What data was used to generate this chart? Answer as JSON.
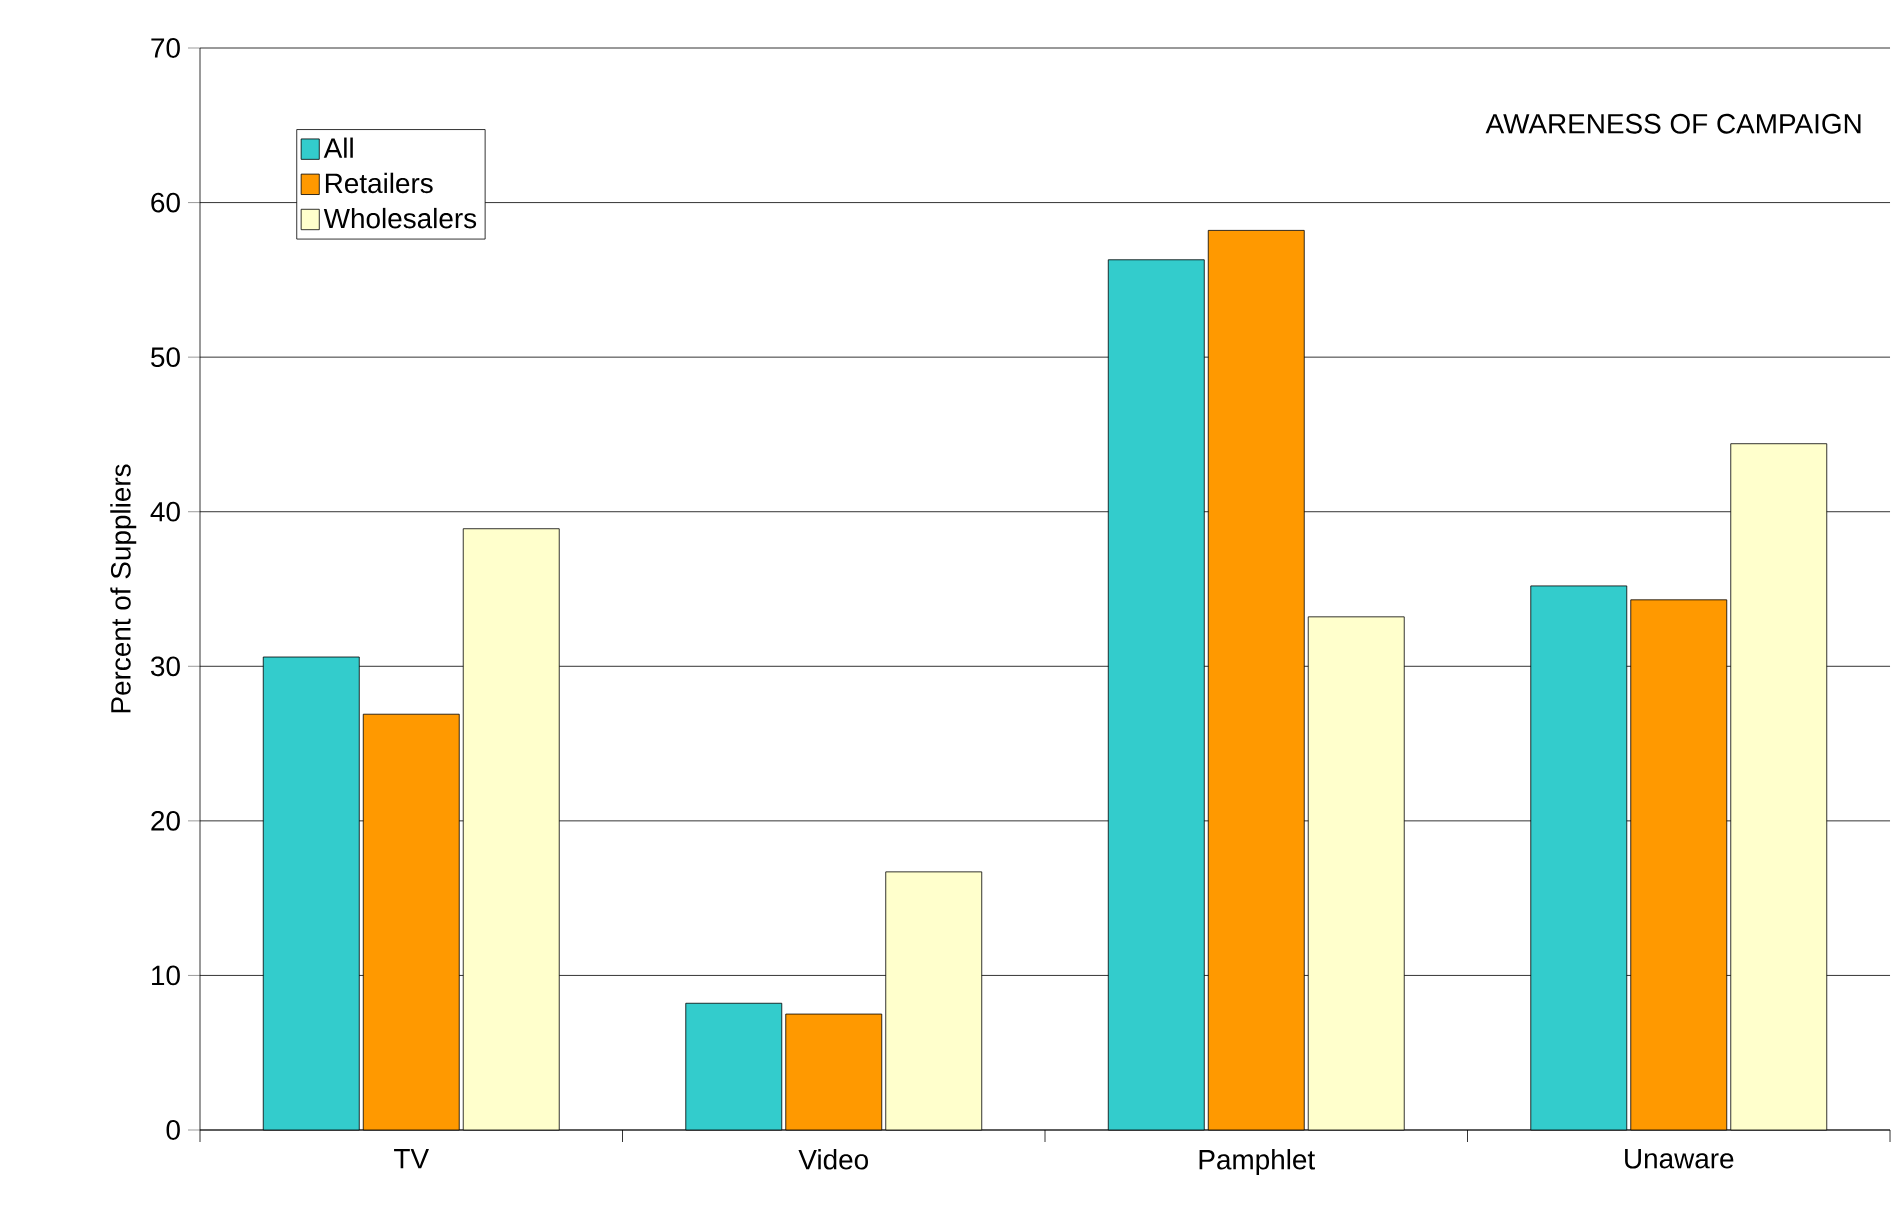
{
  "chart_data": {
    "type": "bar",
    "title": "AWARENESS OF CAMPAIGN",
    "ylabel": "Percent of Suppliers",
    "categories": [
      "TV",
      "Video",
      "Pamphlet",
      "Unaware"
    ],
    "series": [
      {
        "name": "All",
        "color": "#33cccc",
        "values": [
          30.6,
          8.2,
          56.3,
          35.2
        ]
      },
      {
        "name": "Retailers",
        "color": "#ff9900",
        "values": [
          26.9,
          7.5,
          58.2,
          34.3
        ]
      },
      {
        "name": "Wholesalers",
        "color": "#ffffcc",
        "values": [
          38.9,
          16.7,
          33.2,
          44.4
        ]
      }
    ],
    "ylim": [
      0,
      70
    ],
    "yticks": [
      0,
      10,
      20,
      30,
      40,
      50,
      60,
      70
    ],
    "grid": "y",
    "legend": "top left"
  }
}
